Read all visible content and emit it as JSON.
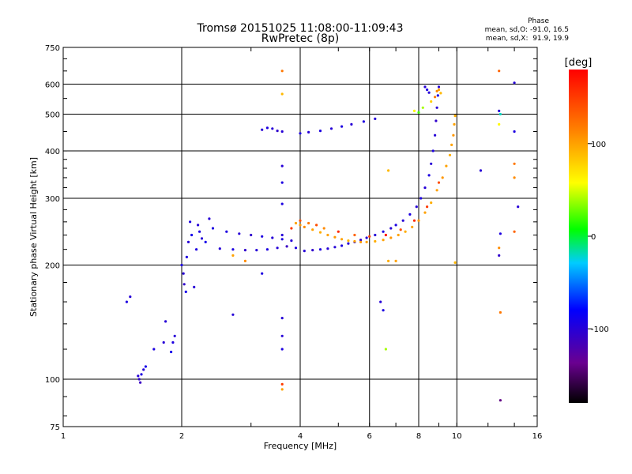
{
  "chart_data": {
    "type": "scatter",
    "title": "Tromsø 20151025 11:08:00-11:09:43",
    "subtitle": "RwPretec (8p)",
    "xlabel": "Frequency [MHz]",
    "ylabel": "Stationary phase Virtual Height [km]",
    "x_scale": "log",
    "y_scale": "log",
    "xlim": [
      1,
      16
    ],
    "ylim": [
      75,
      750
    ],
    "x_ticks": [
      1,
      2,
      4,
      6,
      8,
      10,
      16
    ],
    "x_tick_labels": [
      "1",
      "2",
      "4",
      "6",
      "8",
      "10",
      "16"
    ],
    "y_ticks": [
      75,
      100,
      200,
      300,
      400,
      500,
      600,
      750
    ],
    "y_tick_labels": [
      "75",
      "100",
      "200",
      "300",
      "400",
      "500",
      "600",
      "750"
    ],
    "grid": true,
    "stats_header": "Phase",
    "stats_lines": [
      "mean, sd,O: -91.0, 16.5",
      "mean, sd,X:  91.9, 19.9"
    ],
    "colorbar": {
      "label": "[deg]",
      "range": [
        -180,
        180
      ],
      "ticks": [
        100,
        0,
        -100
      ],
      "tick_labels": [
        "100",
        "0",
        "-100"
      ]
    },
    "series": [
      {
        "mode": "O",
        "points": [
          [
            1.45,
            160,
            -95
          ],
          [
            1.48,
            165,
            -100
          ],
          [
            1.55,
            102,
            -100
          ],
          [
            1.56,
            100,
            -105
          ],
          [
            1.57,
            98,
            -110
          ],
          [
            1.58,
            103,
            -95
          ],
          [
            1.6,
            106,
            -100
          ],
          [
            1.62,
            108,
            -90
          ],
          [
            1.7,
            120,
            -95
          ],
          [
            1.8,
            125,
            -100
          ],
          [
            1.82,
            142,
            -100
          ],
          [
            1.88,
            118,
            -90
          ],
          [
            1.9,
            125,
            -95
          ],
          [
            1.92,
            130,
            -100
          ],
          [
            2.0,
            200,
            -95
          ],
          [
            2.02,
            190,
            -100
          ],
          [
            2.03,
            178,
            -105
          ],
          [
            2.05,
            170,
            -90
          ],
          [
            2.06,
            210,
            -95
          ],
          [
            2.08,
            230,
            -100
          ],
          [
            2.1,
            260,
            -95
          ],
          [
            2.12,
            240,
            -90
          ],
          [
            2.15,
            175,
            -100
          ],
          [
            2.18,
            220,
            -95
          ],
          [
            2.2,
            255,
            -100
          ],
          [
            2.22,
            245,
            -95
          ],
          [
            2.25,
            235,
            -100
          ],
          [
            2.3,
            230,
            -90
          ],
          [
            2.35,
            265,
            -100
          ],
          [
            2.4,
            250,
            -95
          ],
          [
            2.5,
            221,
            -100
          ],
          [
            2.7,
            220,
            -95
          ],
          [
            2.9,
            219,
            -105
          ],
          [
            3.1,
            219,
            -100
          ],
          [
            3.3,
            220,
            -95
          ],
          [
            3.5,
            222,
            -100
          ],
          [
            3.7,
            224,
            -110
          ],
          [
            3.9,
            222,
            -95
          ],
          [
            4.1,
            218,
            -100
          ],
          [
            4.3,
            219,
            -105
          ],
          [
            4.5,
            220,
            -95
          ],
          [
            4.7,
            221,
            -100
          ],
          [
            4.9,
            223,
            -100
          ],
          [
            5.1,
            225,
            -95
          ],
          [
            5.3,
            228,
            -100
          ],
          [
            5.5,
            230,
            -95
          ],
          [
            5.7,
            233,
            -105
          ],
          [
            5.9,
            236,
            -100
          ],
          [
            2.6,
            245,
            -95
          ],
          [
            2.8,
            242,
            -100
          ],
          [
            3.0,
            240,
            -105
          ],
          [
            3.2,
            238,
            -95
          ],
          [
            3.4,
            236,
            -100
          ],
          [
            3.6,
            234,
            -95
          ],
          [
            3.8,
            232,
            -100
          ],
          [
            6.2,
            240,
            -100
          ],
          [
            6.5,
            245,
            -95
          ],
          [
            6.8,
            250,
            -100
          ],
          [
            7.0,
            255,
            -95
          ],
          [
            7.3,
            262,
            -100
          ],
          [
            7.6,
            272,
            -95
          ],
          [
            7.9,
            285,
            -100
          ],
          [
            8.1,
            300,
            -95
          ],
          [
            8.3,
            320,
            -100
          ],
          [
            8.5,
            345,
            -95
          ],
          [
            8.6,
            370,
            -100
          ],
          [
            8.7,
            400,
            -95
          ],
          [
            8.8,
            440,
            -100
          ],
          [
            8.85,
            480,
            -105
          ],
          [
            8.9,
            520,
            -100
          ],
          [
            8.95,
            560,
            -95
          ],
          [
            9.0,
            590,
            -100
          ],
          [
            3.2,
            455,
            -100
          ],
          [
            3.3,
            460,
            -95
          ],
          [
            3.4,
            458,
            -100
          ],
          [
            3.5,
            452,
            -105
          ],
          [
            3.6,
            450,
            -100
          ],
          [
            4.0,
            445,
            -95
          ],
          [
            4.2,
            448,
            -100
          ],
          [
            4.5,
            452,
            -95
          ],
          [
            4.8,
            458,
            -100
          ],
          [
            5.1,
            464,
            -95
          ],
          [
            5.4,
            470,
            -100
          ],
          [
            5.8,
            478,
            -95
          ],
          [
            6.2,
            486,
            -100
          ],
          [
            8.3,
            590,
            -100
          ],
          [
            8.4,
            580,
            -95
          ],
          [
            8.5,
            570,
            -100
          ],
          [
            6.4,
            160,
            -100
          ],
          [
            6.5,
            152,
            -95
          ],
          [
            2.7,
            148,
            -100
          ],
          [
            3.2,
            190,
            -95
          ],
          [
            3.6,
            130,
            -100
          ],
          [
            3.6,
            120,
            -95
          ],
          [
            3.6,
            145,
            -100
          ],
          [
            3.6,
            240,
            -100
          ],
          [
            3.6,
            290,
            -95
          ],
          [
            3.6,
            365,
            -100
          ],
          [
            3.6,
            330,
            -95
          ],
          [
            12.8,
            510,
            -100
          ],
          [
            12.9,
            242,
            -95
          ],
          [
            12.8,
            212,
            -105
          ],
          [
            12.9,
            88,
            -140
          ],
          [
            14.0,
            605,
            -100
          ],
          [
            14.0,
            450,
            -95
          ],
          [
            14.3,
            285,
            -100
          ],
          [
            11.5,
            355,
            -100
          ]
        ]
      },
      {
        "mode": "X",
        "points": [
          [
            3.9,
            258,
            100
          ],
          [
            4.0,
            255,
            105
          ],
          [
            4.1,
            252,
            110
          ],
          [
            4.3,
            248,
            100
          ],
          [
            4.5,
            244,
            95
          ],
          [
            4.7,
            240,
            100
          ],
          [
            4.9,
            237,
            105
          ],
          [
            5.1,
            234,
            100
          ],
          [
            5.3,
            232,
            90
          ],
          [
            5.5,
            231,
            100
          ],
          [
            5.7,
            230,
            105
          ],
          [
            5.9,
            230,
            100
          ],
          [
            6.2,
            231,
            95
          ],
          [
            6.5,
            233,
            100
          ],
          [
            6.8,
            236,
            105
          ],
          [
            7.1,
            240,
            100
          ],
          [
            7.4,
            245,
            95
          ],
          [
            7.7,
            252,
            100
          ],
          [
            8.0,
            262,
            105
          ],
          [
            8.3,
            275,
            100
          ],
          [
            8.6,
            292,
            95
          ],
          [
            8.9,
            315,
            100
          ],
          [
            9.2,
            340,
            105
          ],
          [
            9.4,
            365,
            100
          ],
          [
            9.6,
            390,
            95
          ],
          [
            9.7,
            415,
            100
          ],
          [
            9.8,
            440,
            105
          ],
          [
            9.85,
            470,
            100
          ],
          [
            9.9,
            495,
            95
          ],
          [
            3.8,
            250,
            150
          ],
          [
            4.0,
            262,
            140
          ],
          [
            4.2,
            258,
            120
          ],
          [
            4.4,
            255,
            140
          ],
          [
            4.6,
            250,
            110
          ],
          [
            5.0,
            245,
            160
          ],
          [
            5.5,
            240,
            130
          ],
          [
            6.0,
            238,
            150
          ],
          [
            6.6,
            240,
            170
          ],
          [
            7.2,
            248,
            140
          ],
          [
            7.8,
            262,
            160
          ],
          [
            8.4,
            285,
            150
          ],
          [
            9.0,
            330,
            140
          ],
          [
            8.9,
            575,
            110
          ],
          [
            9.0,
            580,
            100
          ],
          [
            9.1,
            568,
            90
          ],
          [
            8.8,
            555,
            120
          ],
          [
            8.6,
            540,
            80
          ],
          [
            8.2,
            520,
            40
          ],
          [
            8.0,
            505,
            20
          ],
          [
            7.8,
            510,
            60
          ],
          [
            3.6,
            650,
            120
          ],
          [
            3.6,
            565,
            90
          ],
          [
            3.6,
            94,
            100
          ],
          [
            3.6,
            97,
            150
          ],
          [
            6.7,
            355,
            90
          ],
          [
            6.6,
            120,
            40
          ],
          [
            6.7,
            205,
            95
          ],
          [
            7.0,
            205,
            100
          ],
          [
            2.7,
            212,
            100
          ],
          [
            2.9,
            205,
            110
          ],
          [
            9.9,
            203,
            90
          ],
          [
            12.8,
            650,
            130
          ],
          [
            12.8,
            470,
            60
          ],
          [
            12.9,
            150,
            120
          ],
          [
            12.8,
            222,
            110
          ],
          [
            12.9,
            500,
            -20
          ],
          [
            14.0,
            370,
            120
          ],
          [
            14.0,
            245,
            130
          ],
          [
            14.0,
            340,
            110
          ]
        ]
      }
    ]
  }
}
